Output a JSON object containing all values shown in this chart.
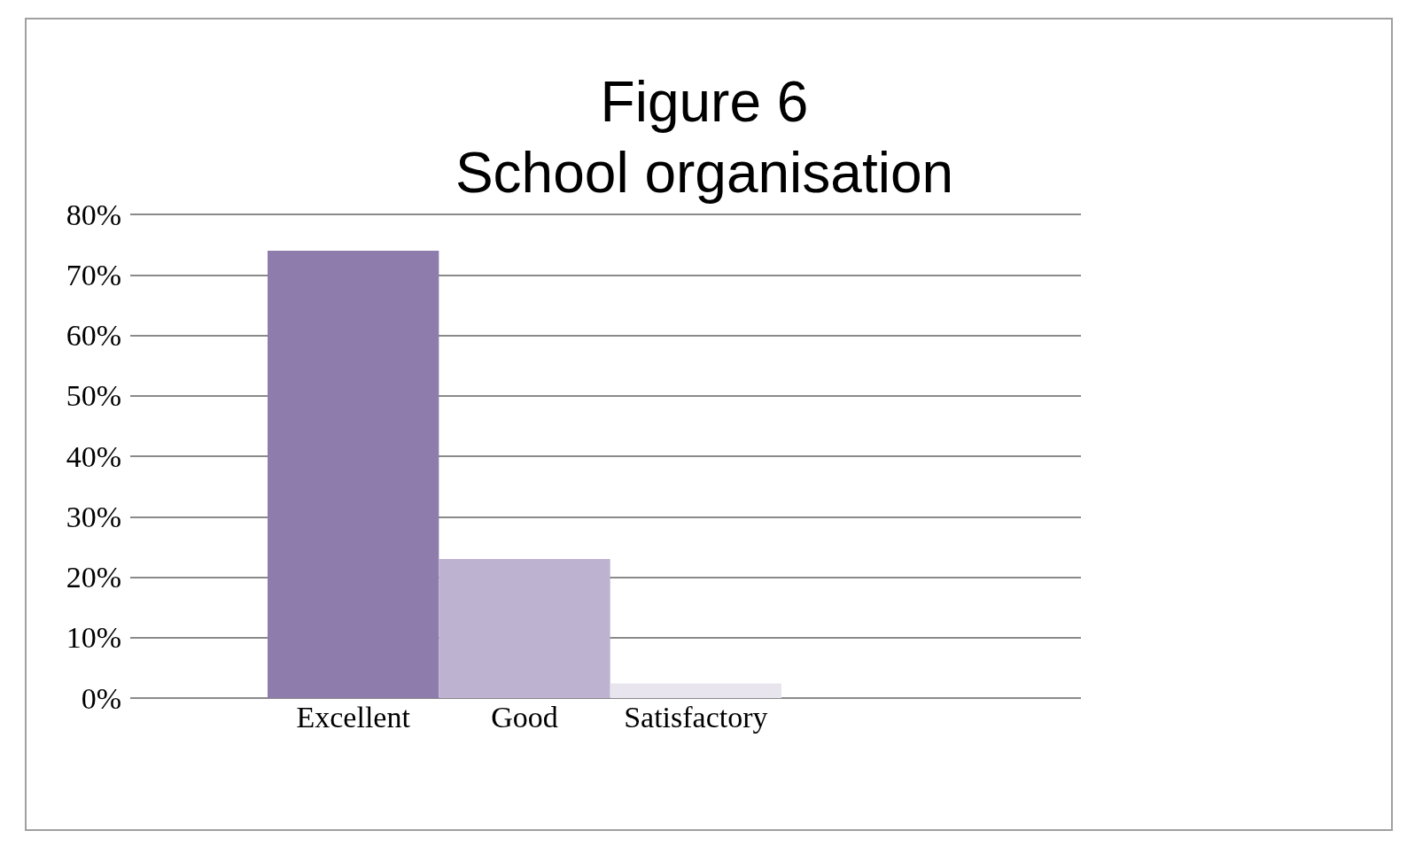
{
  "chart_data": {
    "type": "bar",
    "title": "Figure 6\nSchool organisation",
    "categories": [
      "Excellent",
      "Good",
      "Satisfactory"
    ],
    "values": [
      74,
      23,
      2.4
    ],
    "colors": [
      "#8e7dac",
      "#bdb2d0",
      "#e8e5ef"
    ],
    "ylim": [
      0,
      80
    ],
    "yticks": [
      {
        "value": 0,
        "label": "0%"
      },
      {
        "value": 10,
        "label": "10%"
      },
      {
        "value": 20,
        "label": "20%"
      },
      {
        "value": 30,
        "label": "30%"
      },
      {
        "value": 40,
        "label": "40%"
      },
      {
        "value": 50,
        "label": "50%"
      },
      {
        "value": 60,
        "label": "60%"
      },
      {
        "value": 70,
        "label": "70%"
      },
      {
        "value": 80,
        "label": "80%"
      }
    ],
    "grid": true
  }
}
